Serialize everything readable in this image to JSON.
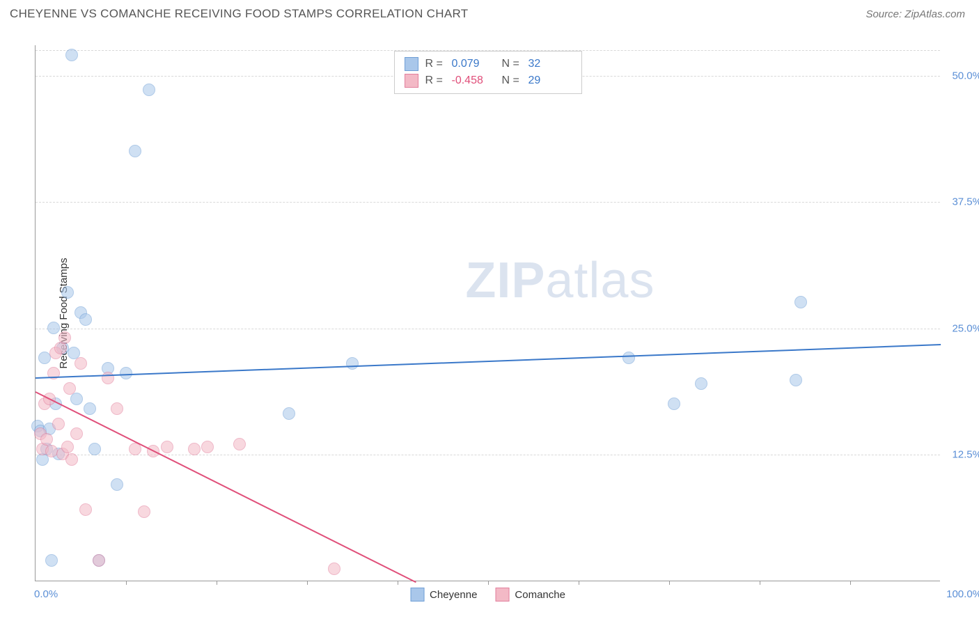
{
  "title": "CHEYENNE VS COMANCHE RECEIVING FOOD STAMPS CORRELATION CHART",
  "source_label": "Source: ZipAtlas.com",
  "ylabel": "Receiving Food Stamps",
  "watermark_bold": "ZIP",
  "watermark_light": "atlas",
  "chart": {
    "type": "scatter",
    "xlim": [
      0,
      100
    ],
    "ylim": [
      0,
      53
    ],
    "x_axis_labels": {
      "min": "0.0%",
      "max": "100.0%"
    },
    "y_gridlines": [
      12.5,
      25.0,
      37.5,
      50.0,
      52.5
    ],
    "y_tick_labels": [
      "12.5%",
      "25.0%",
      "37.5%",
      "50.0%"
    ],
    "x_ticks_minor": [
      10,
      20,
      30,
      40,
      50,
      60,
      70,
      80,
      90
    ],
    "background_color": "#ffffff",
    "grid_color": "#d8d8d8",
    "axis_color": "#999999",
    "tick_label_color": "#5b8fd6",
    "point_radius": 9,
    "point_opacity": 0.55,
    "series": [
      {
        "name": "Cheyenne",
        "color_fill": "#a9c7ea",
        "color_stroke": "#6f9fd6",
        "R": "0.079",
        "N": "32",
        "trend": {
          "x1": 0,
          "y1": 20.2,
          "x2": 100,
          "y2": 23.5,
          "color": "#3a78c9",
          "width": 2
        },
        "points": [
          [
            0.2,
            15.3
          ],
          [
            0.5,
            14.8
          ],
          [
            0.8,
            12.0
          ],
          [
            1.0,
            22.0
          ],
          [
            1.2,
            13.0
          ],
          [
            1.5,
            15.0
          ],
          [
            1.8,
            2.0
          ],
          [
            2.0,
            25.0
          ],
          [
            2.2,
            17.5
          ],
          [
            2.5,
            12.5
          ],
          [
            3.0,
            23.0
          ],
          [
            3.5,
            28.5
          ],
          [
            4.0,
            52.0
          ],
          [
            4.2,
            22.5
          ],
          [
            4.5,
            18.0
          ],
          [
            5.0,
            26.5
          ],
          [
            5.5,
            25.8
          ],
          [
            6.0,
            17.0
          ],
          [
            6.5,
            13.0
          ],
          [
            7.0,
            2.0
          ],
          [
            8.0,
            21.0
          ],
          [
            9.0,
            9.5
          ],
          [
            10.0,
            20.5
          ],
          [
            11.0,
            42.5
          ],
          [
            12.5,
            48.5
          ],
          [
            28.0,
            16.5
          ],
          [
            35.0,
            21.5
          ],
          [
            65.5,
            22.0
          ],
          [
            70.5,
            17.5
          ],
          [
            73.5,
            19.5
          ],
          [
            84.5,
            27.5
          ],
          [
            84.0,
            19.8
          ]
        ]
      },
      {
        "name": "Comanche",
        "color_fill": "#f3b9c6",
        "color_stroke": "#e27f9c",
        "R": "-0.458",
        "N": "29",
        "trend": {
          "x1": 0,
          "y1": 18.8,
          "x2": 42,
          "y2": 0,
          "color": "#e04f7a",
          "width": 2
        },
        "points": [
          [
            0.5,
            14.5
          ],
          [
            0.8,
            13.0
          ],
          [
            1.0,
            17.5
          ],
          [
            1.2,
            14.0
          ],
          [
            1.5,
            18.0
          ],
          [
            1.8,
            12.8
          ],
          [
            2.0,
            20.5
          ],
          [
            2.2,
            22.5
          ],
          [
            2.5,
            15.5
          ],
          [
            2.8,
            23.0
          ],
          [
            3.0,
            12.5
          ],
          [
            3.2,
            24.0
          ],
          [
            3.5,
            13.2
          ],
          [
            3.8,
            19.0
          ],
          [
            4.0,
            12.0
          ],
          [
            4.5,
            14.5
          ],
          [
            5.0,
            21.5
          ],
          [
            5.5,
            7.0
          ],
          [
            7.0,
            2.0
          ],
          [
            8.0,
            20.0
          ],
          [
            9.0,
            17.0
          ],
          [
            11.0,
            13.0
          ],
          [
            12.0,
            6.8
          ],
          [
            13.0,
            12.8
          ],
          [
            14.5,
            13.2
          ],
          [
            17.5,
            13.0
          ],
          [
            19.0,
            13.2
          ],
          [
            22.5,
            13.5
          ],
          [
            33.0,
            1.2
          ]
        ]
      }
    ]
  },
  "legend_top": {
    "r_label": "R =",
    "n_label": "N =",
    "r_color": "#3a78c9",
    "n_color": "#3a78c9",
    "r2_color": "#e04f7a"
  },
  "legend_bottom": [
    {
      "label": "Cheyenne",
      "fill": "#a9c7ea",
      "stroke": "#6f9fd6"
    },
    {
      "label": "Comanche",
      "fill": "#f3b9c6",
      "stroke": "#e27f9c"
    }
  ]
}
